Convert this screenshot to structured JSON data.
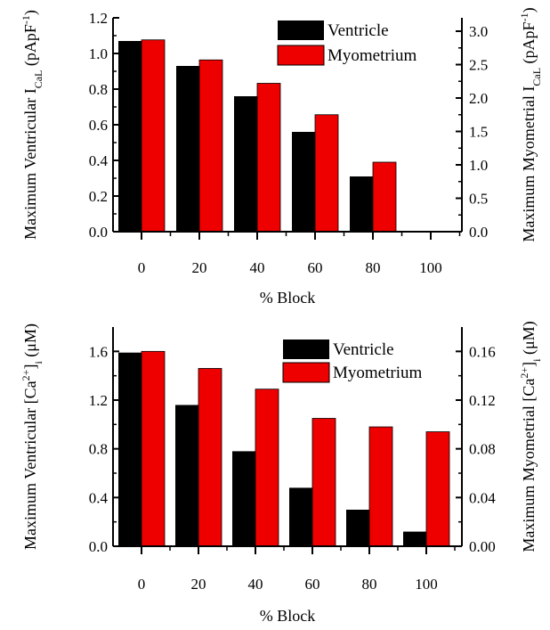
{
  "colors": {
    "ventricle": "#000000",
    "myometrium": "#ee0000",
    "axis": "#000000"
  },
  "chart_data": [
    {
      "type": "bar",
      "categories": [
        "0",
        "20",
        "40",
        "60",
        "80",
        "100"
      ],
      "xlabel": "% Block",
      "ylabel_left": "Maximum Ventricular I_CaL (pApF^-1)",
      "ylabel_right": "Maximum Myometrial I_CaL (pApF^-1)",
      "ylim_left": [
        0,
        1.2
      ],
      "ylim_right": [
        0,
        3.2
      ],
      "yticks_left": [
        "0.0",
        "0.2",
        "0.4",
        "0.6",
        "0.8",
        "1.0",
        "1.2"
      ],
      "yticks_right": [
        "0.0",
        "0.5",
        "1.0",
        "1.5",
        "2.0",
        "2.5",
        "3.0"
      ],
      "legend_position": "top-right",
      "grid": false,
      "series": [
        {
          "name": "Ventricle",
          "axis": "left",
          "values": [
            1.07,
            0.93,
            0.76,
            0.56,
            0.31,
            0.0
          ]
        },
        {
          "name": "Myometrium",
          "axis": "right",
          "values": [
            2.87,
            2.57,
            2.22,
            1.75,
            1.04,
            0.0
          ]
        }
      ]
    },
    {
      "type": "bar",
      "categories": [
        "0",
        "20",
        "40",
        "60",
        "80",
        "100"
      ],
      "xlabel": "% Block",
      "ylabel_left": "Maximum Ventricular [Ca2+]i (μM)",
      "ylabel_right": "Maximum Myometrial [Ca2+]i (μM)",
      "ylim_left": [
        0,
        1.8
      ],
      "ylim_right": [
        0,
        0.18
      ],
      "yticks_left": [
        "0.0",
        "0.4",
        "0.8",
        "1.2",
        "1.6"
      ],
      "yticks_right": [
        "0.00",
        "0.04",
        "0.08",
        "0.12",
        "0.16"
      ],
      "legend_position": "top-right",
      "grid": false,
      "series": [
        {
          "name": "Ventricle",
          "axis": "left",
          "values": [
            1.59,
            1.16,
            0.78,
            0.48,
            0.3,
            0.12
          ]
        },
        {
          "name": "Myometrium",
          "axis": "right",
          "values": [
            0.16,
            0.146,
            0.129,
            0.105,
            0.098,
            0.094
          ]
        }
      ]
    }
  ]
}
